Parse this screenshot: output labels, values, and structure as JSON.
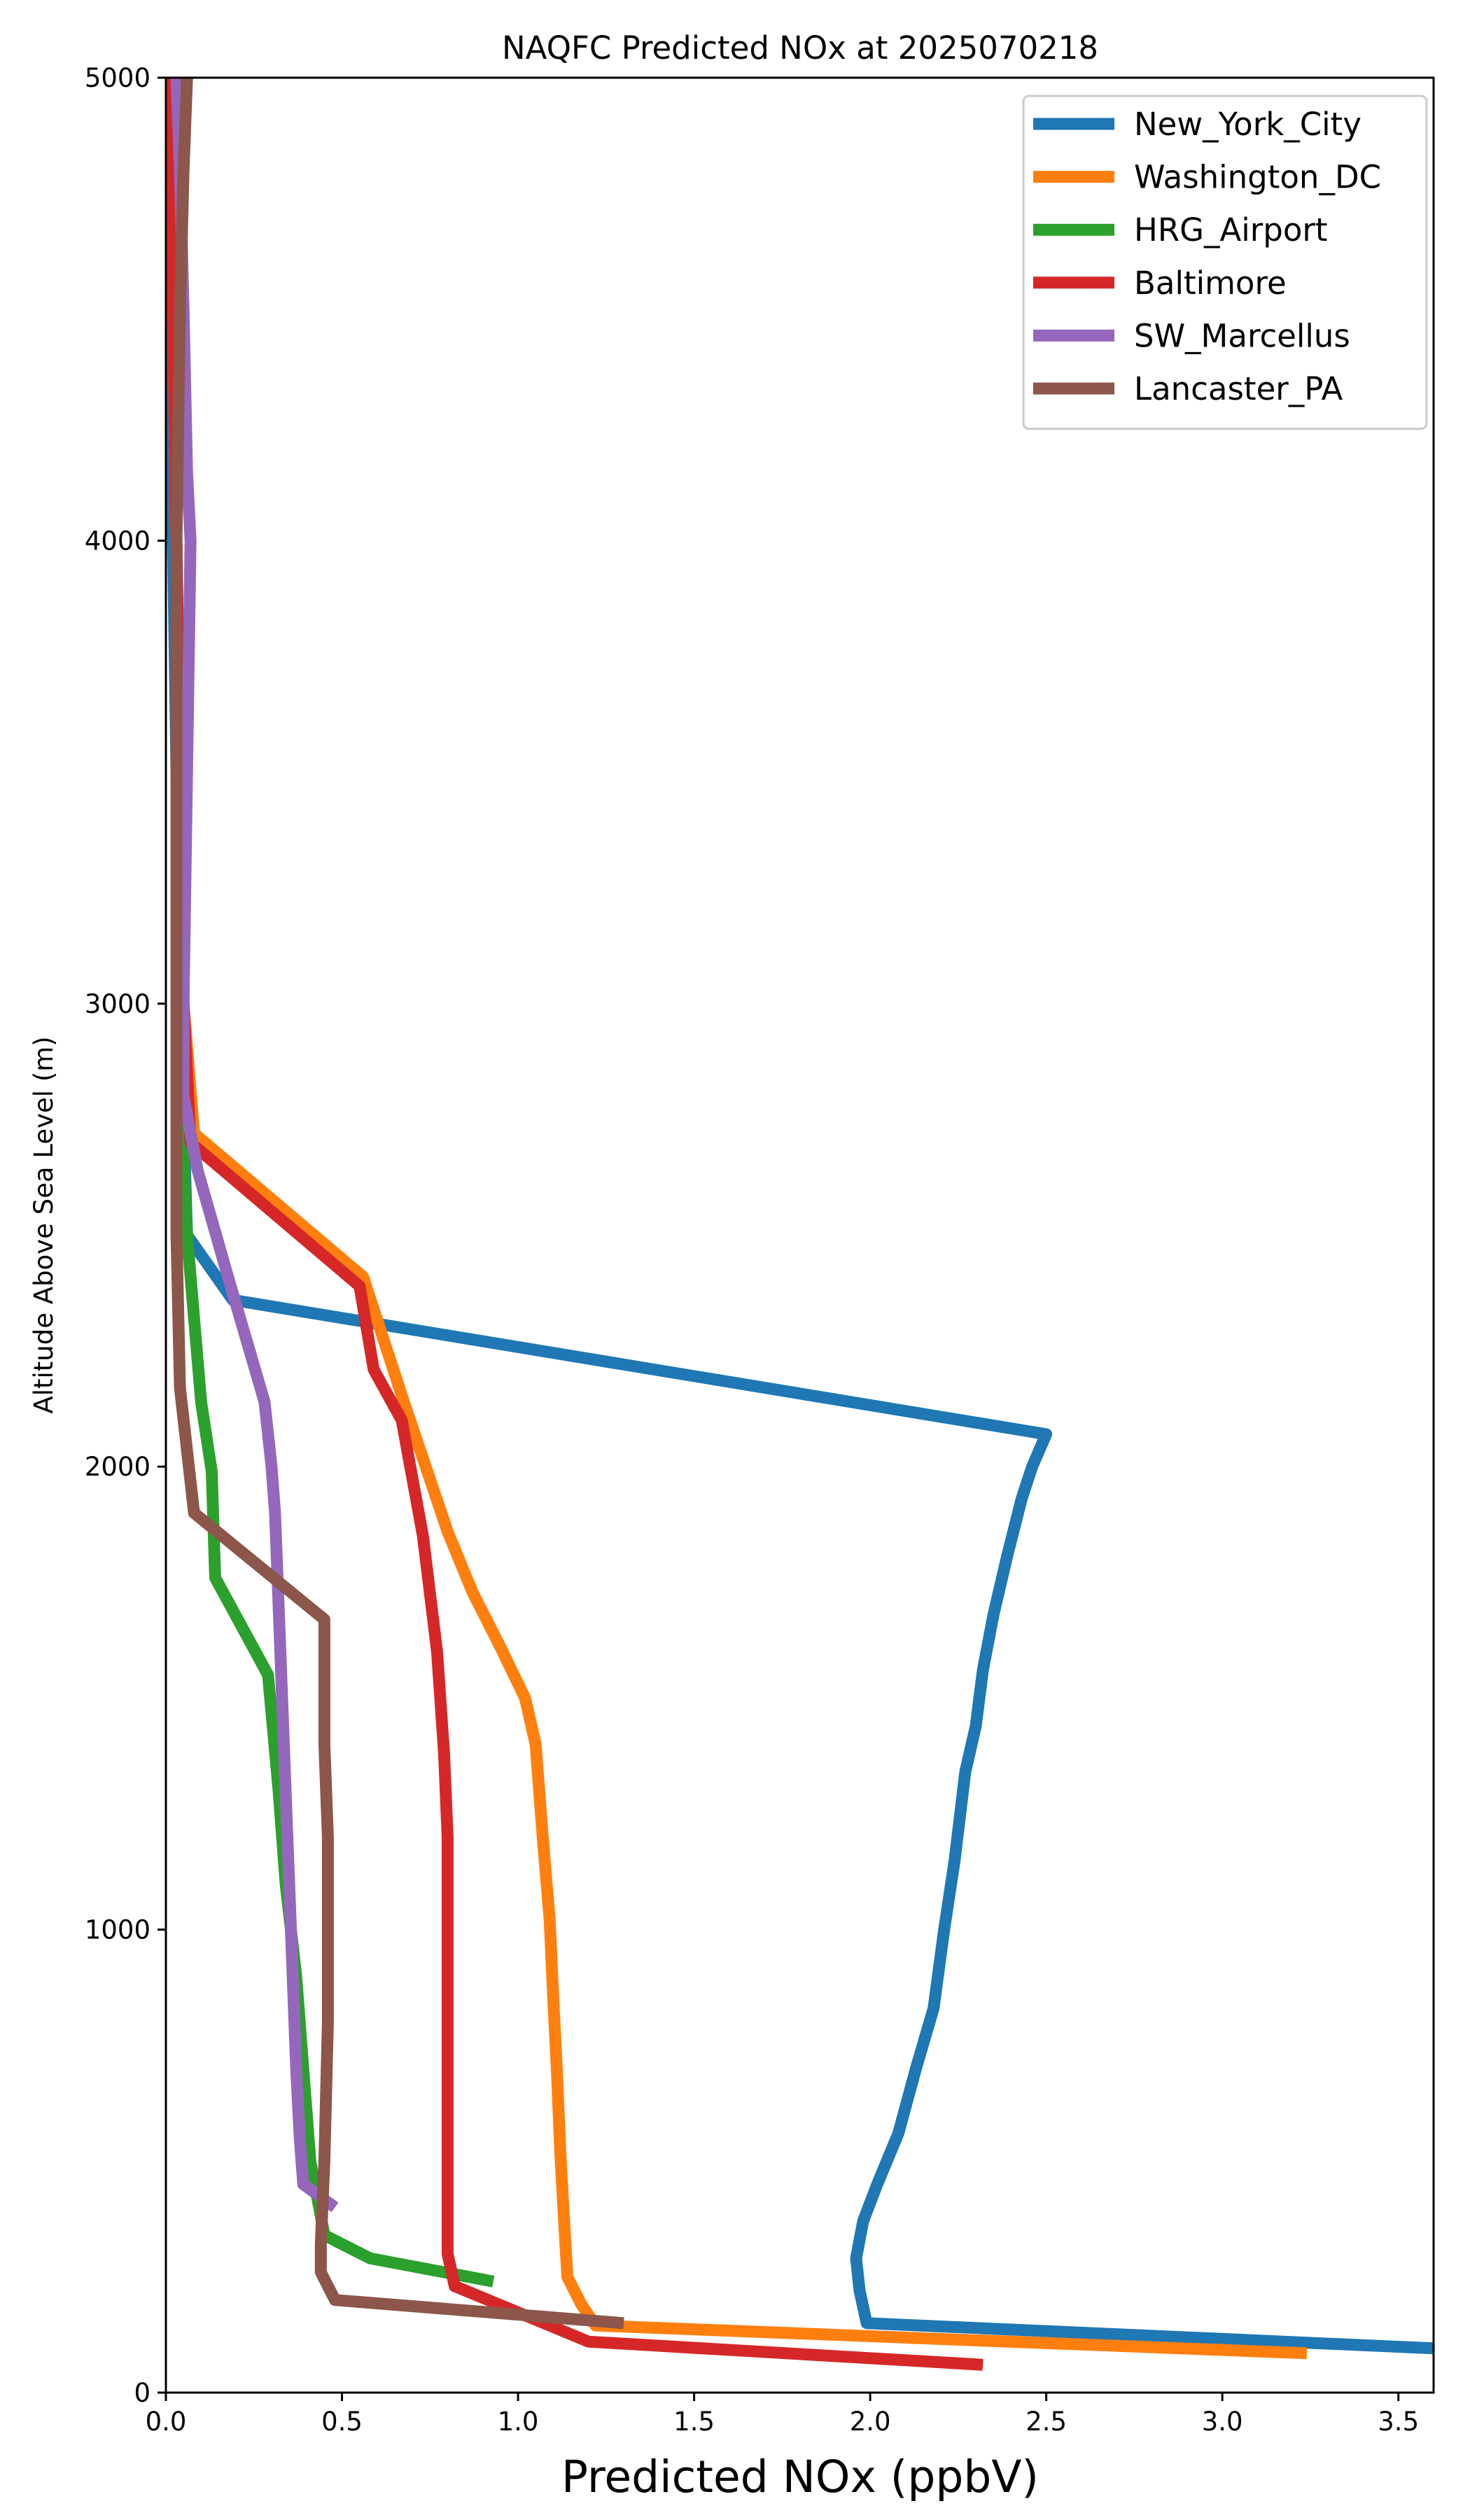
{
  "chart_data": {
    "type": "line",
    "title": "NAQFC Predicted NOx at 2025070218",
    "xlabel": "Predicted NOx (ppbV)",
    "ylabel": "Altitude Above Sea Level (m)",
    "xlim": [
      0,
      3.6
    ],
    "ylim": [
      0,
      5000
    ],
    "xticks": [
      "0.0",
      "0.5",
      "1.0",
      "1.5",
      "2.0",
      "2.5",
      "3.0",
      "3.5"
    ],
    "xtick_values": [
      0,
      0.5,
      1.0,
      1.5,
      2.0,
      2.5,
      3.0,
      3.5
    ],
    "yticks": [
      "0",
      "1000",
      "2000",
      "3000",
      "4000",
      "5000"
    ],
    "ytick_values": [
      0,
      1000,
      2000,
      3000,
      4000,
      5000
    ],
    "grid": false,
    "legend_position": "top-right",
    "series": [
      {
        "name": "New_York_City",
        "color": "#1f77b4",
        "x": [
          3.62,
          1.99,
          1.97,
          1.96,
          1.98,
          2.02,
          2.08,
          2.13,
          2.18,
          2.21,
          2.24,
          2.27,
          2.3,
          2.32,
          2.35,
          2.39,
          2.43,
          2.46,
          2.5,
          0.19,
          0.06,
          0.04,
          0.03,
          0.02,
          0.01,
          0.01
        ],
        "y": [
          95,
          150,
          220,
          290,
          370,
          450,
          560,
          700,
          830,
          1000,
          1150,
          1340,
          1440,
          1560,
          1680,
          1810,
          1930,
          2000,
          2070,
          2360,
          2500,
          3000,
          3500,
          4000,
          4500,
          5000
        ]
      },
      {
        "name": "Washington_DC",
        "color": "#ff7f0e",
        "x": [
          3.24,
          1.22,
          1.18,
          1.14,
          1.13,
          1.12,
          1.11,
          1.1,
          1.09,
          1.07,
          1.05,
          1.02,
          0.95,
          0.87,
          0.8,
          0.68,
          0.56,
          0.08,
          0.05,
          0.04,
          0.03,
          0.02,
          0.02
        ],
        "y": [
          85,
          145,
          190,
          250,
          380,
          520,
          700,
          850,
          1020,
          1200,
          1400,
          1500,
          1610,
          1730,
          1860,
          2130,
          2410,
          2720,
          3000,
          3500,
          4000,
          4500,
          5000
        ]
      },
      {
        "name": "HRG_Airport",
        "color": "#2ca02c",
        "x": [
          0.93,
          0.58,
          0.45,
          0.41,
          0.39,
          0.37,
          0.34,
          0.32,
          0.29,
          0.14,
          0.13,
          0.1,
          0.06,
          0.04,
          0.03
        ],
        "y": [
          240,
          290,
          340,
          500,
          700,
          900,
          1100,
          1300,
          1550,
          1760,
          1990,
          2140,
          2500,
          2800,
          3000
        ]
      },
      {
        "name": "Baltimore",
        "color": "#d62728",
        "x": [
          2.32,
          1.2,
          0.82,
          0.8,
          0.8,
          0.8,
          0.8,
          0.8,
          0.79,
          0.77,
          0.73,
          0.67,
          0.59,
          0.55,
          0.07,
          0.05,
          0.04,
          0.03,
          0.02,
          0.02
        ],
        "y": [
          60,
          110,
          230,
          300,
          500,
          800,
          1000,
          1200,
          1380,
          1600,
          1850,
          2100,
          2210,
          2390,
          2700,
          3000,
          3500,
          4000,
          4500,
          5000
        ]
      },
      {
        "name": "SW_Marcellus",
        "color": "#9467bd",
        "x": [
          0.48,
          0.39,
          0.38,
          0.37,
          0.36,
          0.35,
          0.34,
          0.33,
          0.32,
          0.31,
          0.3,
          0.28,
          0.18,
          0.09,
          0.05,
          0.05,
          0.06,
          0.07,
          0.06,
          0.05,
          0.04,
          0.03
        ],
        "y": [
          400,
          450,
          550,
          700,
          900,
          1100,
          1300,
          1500,
          1700,
          1900,
          2000,
          2140,
          2400,
          2640,
          2800,
          3000,
          3500,
          4000,
          4150,
          4500,
          4800,
          5000
        ]
      },
      {
        "name": "Lancaster_PA",
        "color": "#8c564b",
        "x": [
          1.3,
          0.48,
          0.44,
          0.44,
          0.45,
          0.46,
          0.46,
          0.46,
          0.45,
          0.45,
          0.45,
          0.08,
          0.04,
          0.03,
          0.03,
          0.03,
          0.03,
          0.04,
          0.05,
          0.06,
          0.05
        ],
        "y": [
          150,
          200,
          260,
          320,
          500,
          800,
          1000,
          1200,
          1400,
          1600,
          1670,
          1900,
          2170,
          2500,
          3000,
          3500,
          4000,
          4500,
          4800,
          5000,
          5050
        ]
      }
    ]
  }
}
